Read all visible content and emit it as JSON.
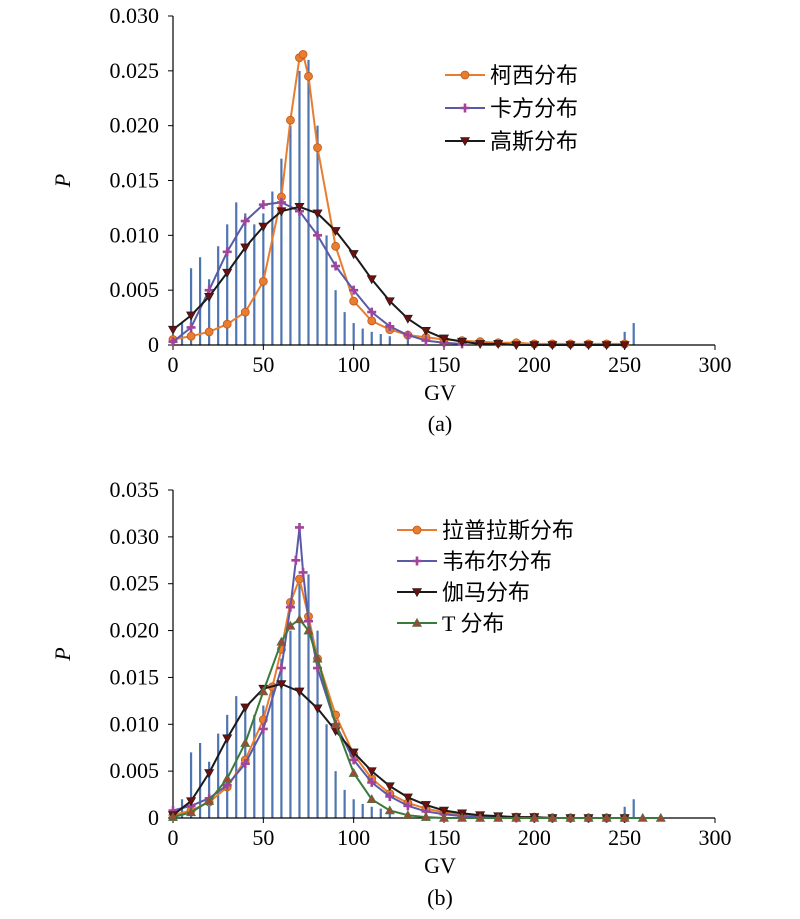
{
  "chart_data": [
    {
      "panel_label": "(a)",
      "type": "line",
      "xlabel": "GV",
      "ylabel": "P",
      "xlim": [
        0,
        300
      ],
      "ylim": [
        0,
        0.03
      ],
      "xticks": [
        "0",
        "50",
        "100",
        "150",
        "200",
        "250",
        "300"
      ],
      "yticks": [
        "0",
        "0.005",
        "0.010",
        "0.015",
        "0.020",
        "0.025",
        "0.030"
      ],
      "legend_position": "top-right",
      "histogram": {
        "description": "grey-level frequency histogram",
        "color": "#4f74b0",
        "x": [
          5,
          10,
          15,
          20,
          25,
          30,
          35,
          40,
          45,
          50,
          55,
          60,
          65,
          70,
          75,
          80,
          85,
          90,
          95,
          100,
          105,
          110,
          115,
          120,
          130,
          140,
          150,
          160,
          250,
          255
        ],
        "values": [
          0.002,
          0.007,
          0.008,
          0.006,
          0.009,
          0.011,
          0.013,
          0.012,
          0.011,
          0.012,
          0.014,
          0.017,
          0.02,
          0.025,
          0.026,
          0.02,
          0.01,
          0.005,
          0.003,
          0.002,
          0.0015,
          0.0012,
          0.001,
          0.0008,
          0.0005,
          0.0004,
          0.0003,
          0.0002,
          0.0012,
          0.002
        ]
      },
      "series": [
        {
          "name": "柯西分布",
          "color": "#e87d2f",
          "marker": "circle",
          "x": [
            0,
            10,
            20,
            30,
            40,
            50,
            60,
            65,
            70,
            72,
            75,
            80,
            90,
            100,
            110,
            120,
            130,
            140,
            150,
            160,
            170,
            180,
            190,
            200,
            210,
            220,
            230,
            240,
            250
          ],
          "values": [
            0.0005,
            0.0008,
            0.0012,
            0.0019,
            0.003,
            0.0058,
            0.0135,
            0.0205,
            0.0262,
            0.0265,
            0.0245,
            0.018,
            0.009,
            0.004,
            0.0022,
            0.0014,
            0.0009,
            0.0007,
            0.0005,
            0.0004,
            0.0003,
            0.0002,
            0.0002,
            0.0001,
            0.0001,
            0.0001,
            0.0001,
            0.0001,
            0.0001
          ]
        },
        {
          "name": "卡方分布",
          "color": "#5a5aa8",
          "marker": "plus",
          "x": [
            0,
            10,
            20,
            30,
            40,
            50,
            60,
            70,
            80,
            90,
            100,
            110,
            120,
            130,
            140,
            150,
            160
          ],
          "values": [
            0.0003,
            0.0016,
            0.005,
            0.0085,
            0.0113,
            0.0128,
            0.013,
            0.0122,
            0.01,
            0.0072,
            0.005,
            0.003,
            0.0017,
            0.0009,
            0.0004,
            0.0002,
            0.0001
          ]
        },
        {
          "name": "高斯分布",
          "color": "#1a1a1a",
          "marker": "triangle-down",
          "x": [
            0,
            10,
            20,
            30,
            40,
            50,
            60,
            70,
            80,
            90,
            100,
            110,
            120,
            130,
            140,
            150,
            160,
            170,
            180,
            190,
            200,
            210,
            220,
            230,
            240,
            250
          ],
          "values": [
            0.0014,
            0.0027,
            0.0044,
            0.0066,
            0.0089,
            0.0108,
            0.0122,
            0.0126,
            0.012,
            0.0104,
            0.0083,
            0.006,
            0.004,
            0.0024,
            0.0013,
            0.0006,
            0.0003,
            0.0001,
            0.0001,
            0.0,
            0.0,
            0.0,
            0.0,
            0.0,
            0.0,
            0.0
          ]
        }
      ]
    },
    {
      "panel_label": "(b)",
      "type": "line",
      "xlabel": "GV",
      "ylabel": "P",
      "xlim": [
        0,
        300
      ],
      "ylim": [
        0,
        0.035
      ],
      "xticks": [
        "0",
        "50",
        "100",
        "150",
        "200",
        "250",
        "300"
      ],
      "yticks": [
        "0",
        "0.005",
        "0.010",
        "0.015",
        "0.020",
        "0.025",
        "0.030",
        "0.035"
      ],
      "legend_position": "top-right",
      "histogram": {
        "description": "grey-level frequency histogram",
        "color": "#4f74b0",
        "x": [
          5,
          10,
          15,
          20,
          25,
          30,
          35,
          40,
          45,
          50,
          55,
          60,
          65,
          70,
          75,
          80,
          85,
          90,
          95,
          100,
          105,
          110,
          115,
          120,
          130,
          140,
          150,
          160,
          250,
          255
        ],
        "values": [
          0.002,
          0.007,
          0.008,
          0.006,
          0.009,
          0.011,
          0.013,
          0.012,
          0.011,
          0.012,
          0.014,
          0.017,
          0.02,
          0.025,
          0.026,
          0.02,
          0.01,
          0.005,
          0.003,
          0.002,
          0.0015,
          0.0012,
          0.001,
          0.0008,
          0.0005,
          0.0004,
          0.0003,
          0.0002,
          0.0012,
          0.002
        ]
      },
      "series": [
        {
          "name": "拉普拉斯分布",
          "color": "#e87d2f",
          "marker": "circle",
          "x": [
            0,
            10,
            20,
            30,
            40,
            50,
            55,
            60,
            65,
            70,
            75,
            80,
            90,
            100,
            110,
            120,
            130,
            140,
            150,
            160,
            170,
            180,
            190,
            200,
            210,
            220,
            230,
            240,
            250
          ],
          "values": [
            0.0003,
            0.0008,
            0.0017,
            0.0033,
            0.0062,
            0.0105,
            0.014,
            0.018,
            0.023,
            0.0255,
            0.0215,
            0.017,
            0.011,
            0.0068,
            0.0042,
            0.0026,
            0.0016,
            0.001,
            0.0006,
            0.0004,
            0.0002,
            0.0001,
            0.0001,
            0.0001,
            0.0,
            0.0,
            0.0,
            0.0,
            0.0
          ]
        },
        {
          "name": "韦布尔分布",
          "color": "#5a5aa8",
          "marker": "plus",
          "x": [
            0,
            10,
            20,
            30,
            40,
            50,
            60,
            65,
            68,
            70,
            72,
            75,
            80,
            90,
            100,
            110,
            120,
            130,
            140,
            150,
            160,
            170,
            180,
            190,
            200,
            210,
            220,
            230,
            240,
            250
          ],
          "values": [
            0.0008,
            0.0013,
            0.0021,
            0.0035,
            0.0058,
            0.0095,
            0.016,
            0.0225,
            0.0275,
            0.031,
            0.0262,
            0.021,
            0.016,
            0.01,
            0.0062,
            0.0038,
            0.0023,
            0.0013,
            0.0007,
            0.0004,
            0.0002,
            0.0001,
            0.0001,
            0.0,
            0.0,
            0.0,
            0.0,
            0.0,
            0.0,
            0.0
          ]
        },
        {
          "name": "伽马分布",
          "color": "#1a1a1a",
          "marker": "triangle-down",
          "x": [
            0,
            10,
            20,
            30,
            40,
            50,
            60,
            70,
            80,
            90,
            100,
            110,
            120,
            130,
            140,
            150,
            160,
            170,
            180,
            190,
            200,
            210,
            220,
            230,
            240,
            250
          ],
          "values": [
            0.0003,
            0.0018,
            0.0048,
            0.0085,
            0.0118,
            0.0138,
            0.0143,
            0.0135,
            0.0117,
            0.0093,
            0.007,
            0.005,
            0.0034,
            0.0022,
            0.0014,
            0.0008,
            0.0005,
            0.0003,
            0.0002,
            0.0001,
            0.0001,
            0.0,
            0.0,
            0.0,
            0.0,
            0.0
          ]
        },
        {
          "name": "T 分布",
          "color": "#3c7a3c",
          "marker": "triangle-up",
          "x": [
            0,
            10,
            20,
            30,
            40,
            50,
            60,
            65,
            70,
            75,
            80,
            90,
            100,
            110,
            120,
            130,
            140,
            150,
            160,
            170,
            180,
            190,
            200,
            210,
            220,
            230,
            240,
            250,
            260,
            270
          ],
          "values": [
            0.0001,
            0.0006,
            0.0018,
            0.0042,
            0.008,
            0.0135,
            0.0188,
            0.0205,
            0.0212,
            0.02,
            0.017,
            0.01,
            0.0048,
            0.002,
            0.0008,
            0.0003,
            0.0001,
            0.0,
            0.0,
            0.0,
            0.0,
            0.0,
            0.0,
            0.0,
            0.0,
            0.0,
            0.0,
            0.0,
            0.0,
            0.0
          ]
        }
      ]
    }
  ]
}
